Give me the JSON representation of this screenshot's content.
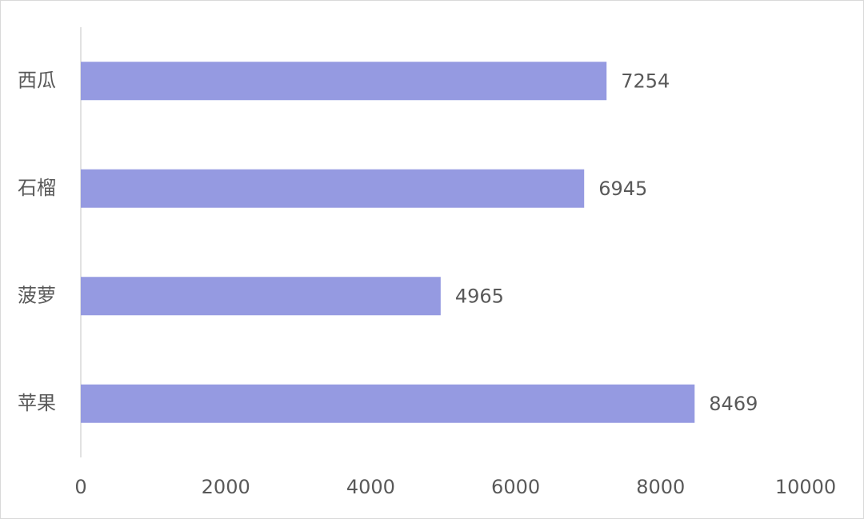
{
  "chart_data": {
    "type": "bar",
    "orientation": "horizontal",
    "categories": [
      "西瓜",
      "石榴",
      "菠萝",
      "苹果"
    ],
    "values": [
      7254,
      6945,
      4965,
      8469
    ],
    "color": "#959ae1",
    "xlim": [
      0,
      10000
    ],
    "xticks": [
      0,
      2000,
      4000,
      6000,
      8000,
      10000
    ],
    "grid": false,
    "data_labels": true
  }
}
